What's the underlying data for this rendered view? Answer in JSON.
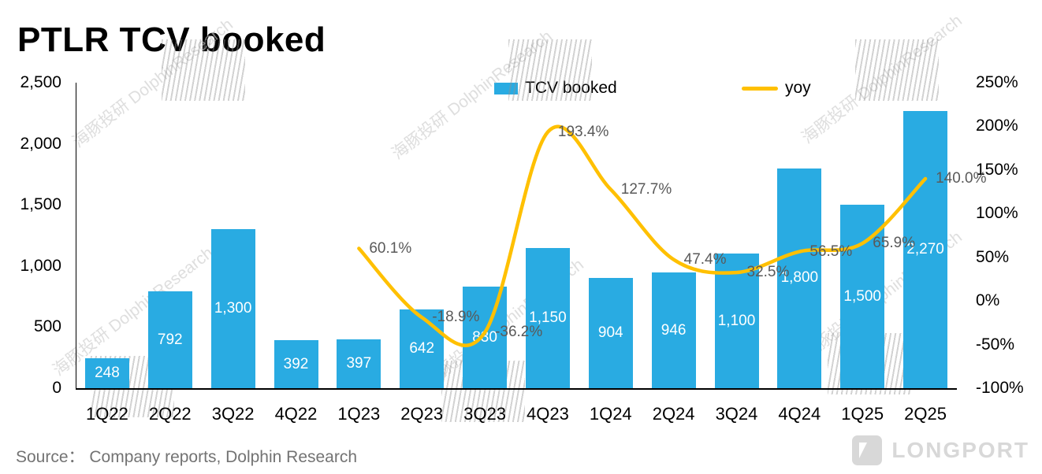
{
  "title": "PTLR TCV booked",
  "legend": {
    "bar_label": "TCV booked",
    "line_label": "yoy"
  },
  "source": "Source： Company reports, Dolphin Research",
  "logo_text": "LONGPORT",
  "watermark": {
    "text": "海豚投研 DolphinResearch"
  },
  "chart_data": {
    "type": "combo",
    "title": "PTLR TCV booked",
    "categories": [
      "1Q22",
      "2Q22",
      "3Q22",
      "4Q22",
      "1Q23",
      "2Q23",
      "3Q23",
      "4Q23",
      "1Q24",
      "2Q24",
      "3Q24",
      "4Q24",
      "1Q25",
      "2Q25"
    ],
    "series": [
      {
        "name": "TCV booked",
        "type": "bar",
        "axis": "left",
        "color": "#29ABE2",
        "values": [
          248,
          792,
          1300,
          392,
          397,
          642,
          830,
          1150,
          904,
          946,
          1100,
          1800,
          1500,
          2270
        ],
        "labels": [
          "248",
          "792",
          "1,300",
          "392",
          "397",
          "642",
          "830",
          "1,150",
          "904",
          "946",
          "1,100",
          "1,800",
          "1,500",
          "2,270"
        ]
      },
      {
        "name": "yoy",
        "type": "line",
        "axis": "right",
        "color": "#FFC000",
        "values": [
          null,
          null,
          null,
          null,
          60.1,
          -18.9,
          -36.2,
          193.4,
          127.7,
          47.4,
          32.5,
          56.5,
          65.9,
          140.0
        ],
        "labels": [
          null,
          null,
          null,
          null,
          "60.1%",
          "-18.9%",
          "-36.2%",
          "193.4%",
          "127.7%",
          "47.4%",
          "32.5%",
          "56.5%",
          "65.9%",
          "140.0%"
        ]
      }
    ],
    "left_axis": {
      "min": 0,
      "max": 2500,
      "step": 500,
      "tick_values": [
        0,
        500,
        1000,
        1500,
        2000,
        2500
      ],
      "ticks": [
        "0",
        "500",
        "1,000",
        "1,500",
        "2,000",
        "2,500"
      ]
    },
    "right_axis": {
      "min": -100,
      "max": 250,
      "step": 50,
      "tick_values": [
        -100,
        -50,
        0,
        50,
        100,
        150,
        200,
        250
      ],
      "ticks": [
        "-100%",
        "-50%",
        "0%",
        "50%",
        "100%",
        "150%",
        "200%",
        "250%"
      ]
    },
    "grid": false,
    "legend_position": "top"
  }
}
